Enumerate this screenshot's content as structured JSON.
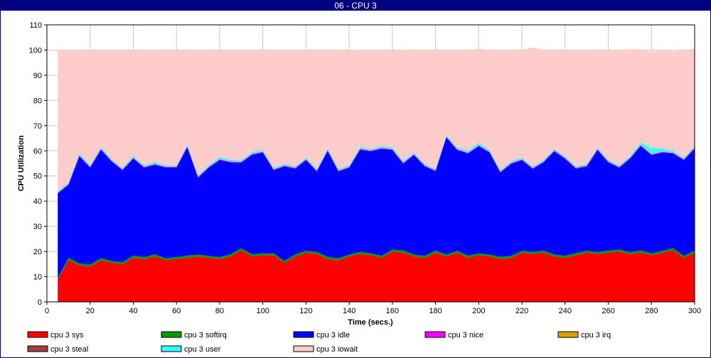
{
  "window": {
    "title": "06 - CPU 3"
  },
  "chart_data": {
    "type": "area",
    "stacked": true,
    "xlabel": "Time (secs.)",
    "ylabel": "CPU Utilization",
    "xlim": [
      0,
      300
    ],
    "ylim": [
      0,
      110
    ],
    "xticks": [
      0,
      20,
      40,
      60,
      80,
      100,
      120,
      140,
      160,
      180,
      200,
      220,
      240,
      260,
      280,
      300
    ],
    "yticks": [
      0,
      10,
      20,
      30,
      40,
      50,
      60,
      70,
      80,
      90,
      100,
      110
    ],
    "grid": true,
    "legend_position": "bottom",
    "x": [
      5,
      10,
      15,
      20,
      25,
      30,
      35,
      40,
      45,
      50,
      55,
      60,
      65,
      70,
      75,
      80,
      85,
      90,
      95,
      100,
      105,
      110,
      115,
      120,
      125,
      130,
      135,
      140,
      145,
      150,
      155,
      160,
      165,
      170,
      175,
      180,
      185,
      190,
      195,
      200,
      205,
      210,
      215,
      220,
      225,
      230,
      235,
      240,
      245,
      250,
      255,
      260,
      265,
      270,
      275,
      280,
      285,
      290,
      295,
      300
    ],
    "series": [
      {
        "name": "cpu 3 sys",
        "color": "#ff0000",
        "values": [
          9,
          16.5,
          14.5,
          14,
          16.5,
          15.5,
          15,
          17.5,
          17,
          18,
          16.5,
          17,
          17.5,
          18,
          17.5,
          17,
          18,
          20.5,
          18,
          18.5,
          18.5,
          15.5,
          18,
          19.5,
          19,
          17,
          16.5,
          18,
          19,
          18.5,
          17.5,
          20,
          19.5,
          18,
          17.5,
          19.5,
          18,
          19.5,
          17.5,
          18.5,
          18,
          17,
          17.5,
          19.5,
          19,
          19.5,
          18,
          17.5,
          18.5,
          19.5,
          19,
          19.5,
          20,
          19,
          19.5,
          18.5,
          19.5,
          20.5,
          17.5,
          19.5
        ]
      },
      {
        "name": "cpu 3 softirq",
        "color": "#009900",
        "values": [
          0.5,
          1,
          0.8,
          0.8,
          0.9,
          0.7,
          0.8,
          0.9,
          0.8,
          0.9,
          0.8,
          0.8,
          0.9,
          0.8,
          0.8,
          0.8,
          0.9,
          0.8,
          0.9,
          0.8,
          0.8,
          0.8,
          0.9,
          0.8,
          0.8,
          0.9,
          0.8,
          0.8,
          0.9,
          0.8,
          0.8,
          0.8,
          0.9,
          0.8,
          0.8,
          0.9,
          0.8,
          0.8,
          0.9,
          0.8,
          0.8,
          0.9,
          0.8,
          0.8,
          0.8,
          0.9,
          0.8,
          0.8,
          0.9,
          0.8,
          0.8,
          0.9,
          0.8,
          0.8,
          0.9,
          0.8,
          0.8,
          0.9,
          0.8,
          0.9
        ]
      },
      {
        "name": "cpu 3 idle",
        "color": "#0000ff",
        "values": [
          33.5,
          29,
          42.5,
          38.5,
          43,
          39.5,
          36.5,
          38.5,
          35.5,
          35.5,
          36,
          35.5,
          43,
          30.5,
          35,
          38.5,
          36.5,
          34,
          39.5,
          40,
          33,
          37.5,
          34,
          36,
          32,
          42,
          34.5,
          34.5,
          40.5,
          40.5,
          42.5,
          39.5,
          34.5,
          39.5,
          35.5,
          31.5,
          46.5,
          40,
          40.5,
          42.5,
          40.5,
          33.5,
          36.5,
          36,
          33,
          35,
          41,
          38.5,
          33.5,
          33.5,
          40.5,
          35,
          32.5,
          37,
          41.5,
          39,
          39,
          37.5,
          38,
          40.5
        ]
      },
      {
        "name": "cpu 3 nice",
        "color": "#ff00ff",
        "values": [
          0.3,
          0.3,
          0.3,
          0.3,
          0.3,
          0.3,
          0.3,
          0.3,
          0.3,
          0.3,
          0.3,
          0.3,
          0.3,
          0.3,
          0.3,
          0.3,
          0.3,
          0.3,
          0.3,
          0.3,
          0.3,
          0.3,
          0.3,
          0.3,
          0.3,
          0.3,
          0.3,
          0.3,
          0.3,
          0.3,
          0.3,
          0.3,
          0.3,
          0.3,
          0.3,
          0.3,
          0.3,
          0.3,
          0.3,
          0.3,
          0.3,
          0.3,
          0.3,
          0.3,
          0.3,
          0.3,
          0.3,
          0.3,
          0.3,
          0.3,
          0.3,
          0.3,
          0.3,
          0.3,
          0.3,
          0.3,
          0.3,
          0.3,
          0.3,
          0.3
        ]
      },
      {
        "name": "cpu 3 irq",
        "color": "#e0a000",
        "values": [
          0.1,
          0.1,
          0.1,
          0.1,
          0.1,
          0.1,
          0.1,
          0.1,
          0.1,
          0.1,
          0.1,
          0.1,
          0.1,
          0.1,
          0.1,
          0.1,
          0.1,
          0.1,
          0.1,
          0.1,
          0.1,
          0.1,
          0.1,
          0.1,
          0.1,
          0.1,
          0.1,
          0.1,
          0.1,
          0.1,
          0.1,
          0.1,
          0.1,
          0.1,
          0.1,
          0.1,
          0.1,
          0.1,
          0.1,
          0.1,
          0.1,
          0.1,
          0.1,
          0.1,
          0.1,
          0.1,
          0.1,
          0.1,
          0.1,
          0.1,
          0.1,
          0.1,
          0.1,
          0.1,
          0.1,
          0.1,
          0.1,
          0.1,
          0.1,
          0.1
        ]
      },
      {
        "name": "cpu 3 steal",
        "color": "#a04040",
        "values": [
          0,
          0,
          0,
          0,
          0,
          0,
          0,
          0,
          0,
          0,
          0,
          0,
          0,
          0,
          0,
          0,
          0,
          0,
          0,
          0,
          0,
          0,
          0,
          0,
          0,
          0,
          0,
          0,
          0,
          0,
          0,
          0,
          0,
          0,
          0,
          0,
          0,
          0,
          0,
          0,
          0,
          0,
          0,
          0,
          0,
          0,
          0,
          0,
          0,
          0,
          0,
          0,
          0,
          0,
          0,
          0,
          0,
          0,
          0,
          0
        ]
      },
      {
        "name": "cpu 3 user",
        "color": "#33ffff",
        "values": [
          0.6,
          0.6,
          0.8,
          0.6,
          0.7,
          0.6,
          0.5,
          0.7,
          0.6,
          0.7,
          0.6,
          0.5,
          0.7,
          0.6,
          0.6,
          0.8,
          0.6,
          0.6,
          0.7,
          0.6,
          0.6,
          0.6,
          0.6,
          0.6,
          0.6,
          0.7,
          0.6,
          0.6,
          0.7,
          0.6,
          0.6,
          0.7,
          0.6,
          0.6,
          0.6,
          0.6,
          0.6,
          0.6,
          0.7,
          1,
          0.6,
          0.6,
          0.6,
          0.6,
          0.6,
          0.6,
          0.6,
          0.6,
          0.6,
          0.6,
          0.6,
          0.6,
          0.6,
          0.6,
          1,
          2.5,
          1.2,
          0.6,
          0.6,
          0.6
        ]
      },
      {
        "name": "cpu 3 iowait",
        "color": "#ffcccc",
        "values": [
          56,
          52.5,
          41,
          45.7,
          38.5,
          43.3,
          46.8,
          42,
          45.7,
          44.5,
          45.7,
          45.8,
          37.5,
          49.7,
          45.7,
          42.5,
          43.6,
          43.7,
          40.5,
          39.7,
          46.7,
          45.2,
          46.1,
          42.7,
          47.2,
          39,
          47.2,
          46,
          38.5,
          39.2,
          38.2,
          38.6,
          44.1,
          41,
          45.2,
          47.1,
          33.7,
          38.8,
          39.8,
          37.3,
          39.7,
          47.6,
          44.2,
          42.7,
          47.2,
          43.6,
          39.5,
          42.2,
          46.1,
          45.2,
          38.7,
          43.6,
          45.8,
          42.5,
          37,
          38.1,
          39.4,
          39.6,
          42.7,
          38.6
        ]
      }
    ]
  }
}
